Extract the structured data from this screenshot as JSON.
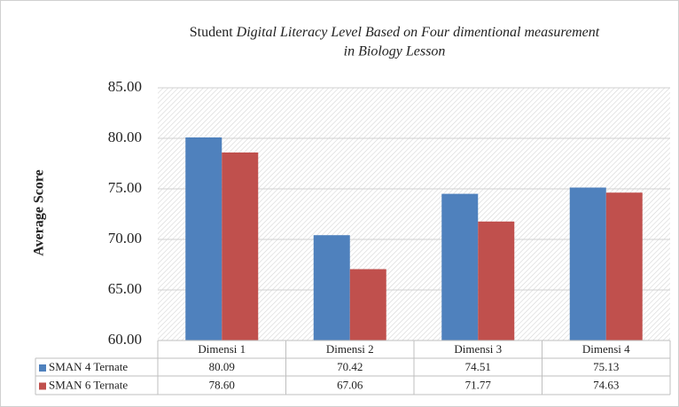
{
  "chart_data": {
    "type": "bar",
    "title": [
      "Student",
      "Digital Literacy Level Based on Four dimentional measurement",
      "in Biology Lesson"
    ],
    "y_label": "Average Score",
    "categories": [
      "Dimensi 1",
      "Dimensi 2",
      "Dimensi 3",
      "Dimensi 4"
    ],
    "series": [
      {
        "name": "SMAN 4 Ternate",
        "color": "#4f81bd",
        "values": [
          80.09,
          70.42,
          74.51,
          75.13
        ],
        "value_labels": [
          "80.09",
          "70.42",
          "74.51",
          "75.13"
        ]
      },
      {
        "name": "SMAN 6 Ternate",
        "color": "#c0504d",
        "values": [
          78.6,
          67.06,
          71.77,
          74.63
        ],
        "value_labels": [
          "78.60",
          "67.06",
          "71.77",
          "74.63"
        ]
      }
    ],
    "ylim": [
      60,
      85
    ],
    "yticks": [
      {
        "value": 60,
        "label": "60.00"
      },
      {
        "value": 65,
        "label": "65.00"
      },
      {
        "value": 70,
        "label": "70.00"
      },
      {
        "value": 75,
        "label": "75.00"
      },
      {
        "value": 80,
        "label": "80.00"
      },
      {
        "value": 85,
        "label": "85.00"
      }
    ],
    "grid": true
  }
}
